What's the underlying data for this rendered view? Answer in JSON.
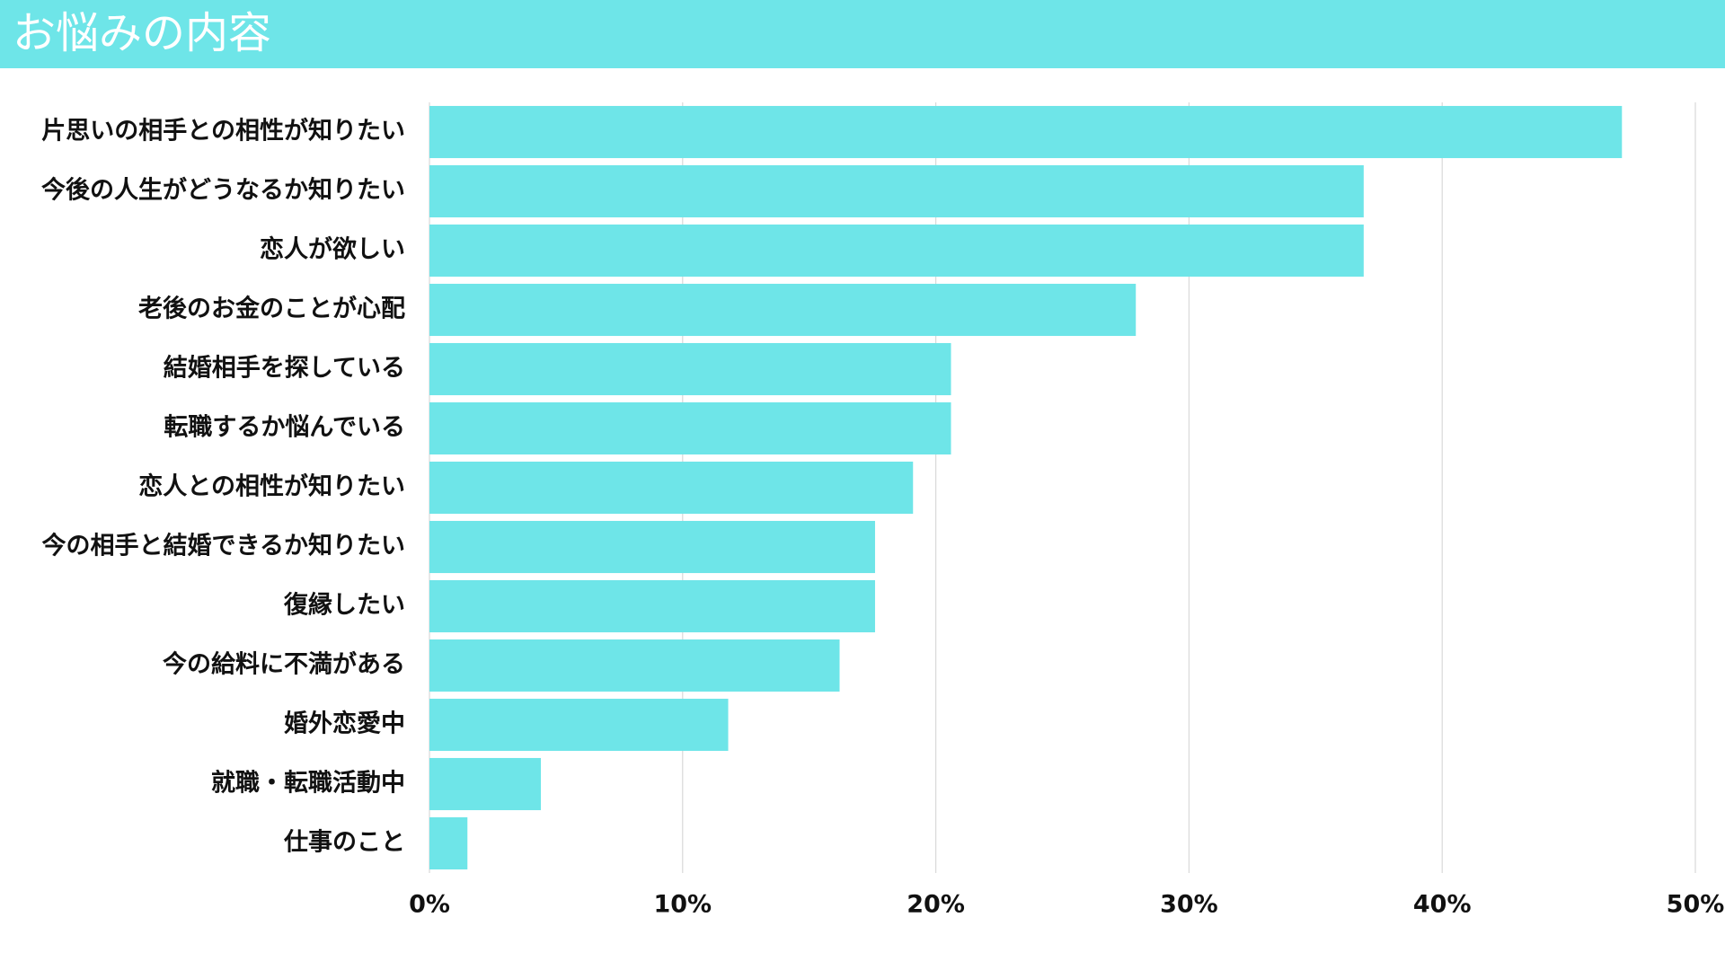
{
  "chart_data": {
    "type": "bar",
    "orientation": "horizontal",
    "title": "お悩みの内容",
    "categories": [
      "片思いの相手との相性が知りたい",
      "今後の人生がどうなるか知りたい",
      "恋人が欲しい",
      "老後のお金のことが心配",
      "結婚相手を探している",
      "転職するか悩んでいる",
      "恋人との相性が知りたい",
      "今の相手と結婚できるか知りたい",
      "復縁したい",
      "今の給料に不満がある",
      "婚外恋愛中",
      "就職・転職活動中",
      "仕事のこと"
    ],
    "values": [
      47.1,
      36.9,
      36.9,
      27.9,
      20.6,
      20.6,
      19.1,
      17.6,
      17.6,
      16.2,
      11.8,
      4.4,
      1.5
    ],
    "color": "#6ee5e8",
    "xlim": [
      0,
      50
    ],
    "xticks": [
      {
        "value": 0,
        "label": "0%"
      },
      {
        "value": 10,
        "label": "10%"
      },
      {
        "value": 20,
        "label": "20%"
      },
      {
        "value": 30,
        "label": "30%"
      },
      {
        "value": 40,
        "label": "40%"
      },
      {
        "value": 50,
        "label": "50%"
      }
    ],
    "grid": true
  }
}
